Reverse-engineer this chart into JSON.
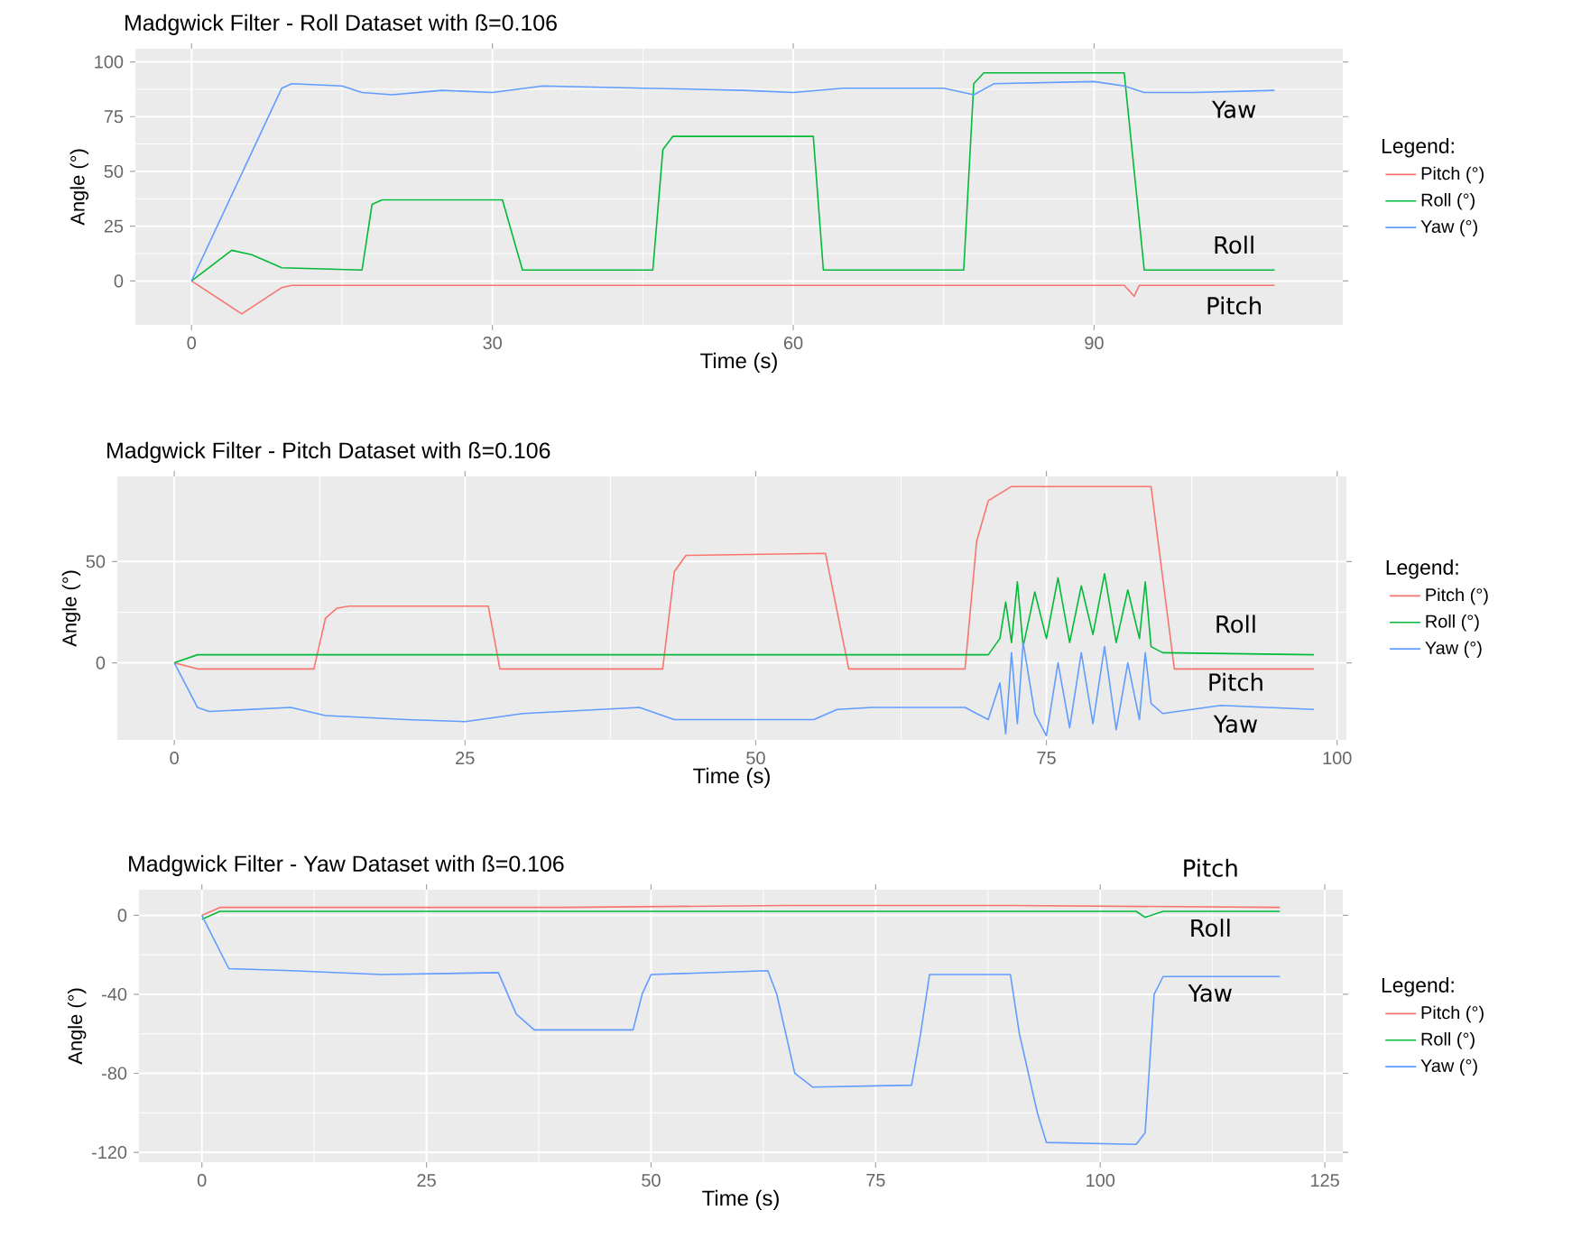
{
  "chart_data": [
    {
      "type": "line",
      "title": "Madgwick Filter - Roll Dataset with ß=0.106",
      "xlabel": "Time (s)",
      "ylabel": "Angle (°)",
      "legend_title": "Legend:",
      "legend": "right",
      "grid": true,
      "xlim": [
        -5.6,
        114.8
      ],
      "ylim": [
        -20,
        106
      ],
      "xticks": [
        0,
        30,
        60,
        90
      ],
      "yticks": [
        0,
        25,
        50,
        75,
        100
      ],
      "series": [
        {
          "name": "Pitch (°)",
          "color": "#f8766d",
          "x": [
            0,
            5,
            9,
            10,
            50,
            93,
            94,
            94.5,
            108
          ],
          "values": [
            0,
            -15,
            -3,
            -2,
            -2,
            -2,
            -7,
            -2,
            -2
          ]
        },
        {
          "name": "Roll (°)",
          "color": "#00ba38",
          "x": [
            0,
            4,
            6,
            9,
            17,
            18,
            19,
            31,
            33,
            46,
            47,
            48,
            62,
            63,
            77,
            78,
            79,
            93,
            95,
            108
          ],
          "values": [
            0,
            14,
            12,
            6,
            5,
            35,
            37,
            37,
            5,
            5,
            60,
            66,
            66,
            5,
            5,
            90,
            95,
            95,
            5,
            5
          ]
        },
        {
          "name": "Yaw (°)",
          "color": "#619cff",
          "x": [
            0,
            9,
            10,
            15,
            17,
            20,
            25,
            30,
            35,
            45,
            55,
            60,
            65,
            75,
            78,
            80,
            90,
            93,
            95,
            100,
            108
          ],
          "values": [
            0,
            88,
            90,
            89,
            86,
            85,
            87,
            86,
            89,
            88,
            87,
            86,
            88,
            88,
            85,
            90,
            91,
            89,
            86,
            86,
            87
          ]
        }
      ],
      "annotations": [
        "Yaw",
        "Roll",
        "Pitch"
      ]
    },
    {
      "type": "line",
      "title": "Madgwick Filter - Pitch Dataset with ß=0.106",
      "xlabel": "Time (s)",
      "ylabel": "Angle (°)",
      "legend_title": "Legend:",
      "legend": "right",
      "grid": true,
      "xlim": [
        -4.9,
        100.8
      ],
      "ylim": [
        -38,
        92
      ],
      "xticks": [
        0,
        25,
        50,
        75,
        100
      ],
      "yticks": [
        0,
        50
      ],
      "series": [
        {
          "name": "Pitch (°)",
          "color": "#f8766d",
          "x": [
            0,
            2,
            12,
            13,
            14,
            15,
            27,
            28,
            42,
            43,
            44,
            56,
            58,
            68,
            69,
            70,
            72,
            84,
            86,
            98
          ],
          "values": [
            0,
            -3,
            -3,
            22,
            27,
            28,
            28,
            -3,
            -3,
            45,
            53,
            54,
            -3,
            -3,
            60,
            80,
            87,
            87,
            -3,
            -3
          ]
        },
        {
          "name": "Roll (°)",
          "color": "#00ba38",
          "x": [
            0,
            2,
            3,
            70,
            71,
            71.5,
            72,
            72.5,
            73,
            74,
            75,
            76,
            77,
            78,
            79,
            80,
            81,
            82,
            83,
            83.5,
            84,
            85,
            98
          ],
          "values": [
            0,
            4,
            4,
            4,
            12,
            30,
            10,
            40,
            8,
            35,
            12,
            42,
            10,
            38,
            14,
            44,
            10,
            36,
            12,
            40,
            8,
            5,
            4
          ]
        },
        {
          "name": "Yaw (°)",
          "color": "#619cff",
          "x": [
            0,
            2,
            3,
            10,
            13,
            20,
            25,
            30,
            40,
            43,
            55,
            57,
            60,
            68,
            70,
            71,
            71.5,
            72,
            72.5,
            73,
            74,
            75,
            76,
            77,
            78,
            79,
            80,
            81,
            82,
            83,
            83.5,
            84,
            85,
            90,
            98
          ],
          "values": [
            0,
            -22,
            -24,
            -22,
            -26,
            -28,
            -29,
            -25,
            -22,
            -28,
            -28,
            -23,
            -22,
            -22,
            -28,
            -10,
            -35,
            5,
            -30,
            10,
            -25,
            -36,
            0,
            -32,
            5,
            -30,
            8,
            -33,
            0,
            -28,
            5,
            -20,
            -25,
            -21,
            -23
          ]
        }
      ],
      "annotations": [
        "Roll",
        "Pitch",
        "Yaw"
      ]
    },
    {
      "type": "line",
      "title": "Madgwick Filter - Yaw Dataset with ß=0.106",
      "xlabel": "Time (s)",
      "ylabel": "Angle (°)",
      "legend_title": "Legend:",
      "legend": "right",
      "grid": true,
      "xlim": [
        -7,
        127
      ],
      "ylim": [
        -125,
        13
      ],
      "xticks": [
        0,
        25,
        50,
        75,
        100,
        125
      ],
      "yticks": [
        -120,
        -80,
        -40,
        0
      ],
      "series": [
        {
          "name": "Pitch (°)",
          "color": "#f8766d",
          "x": [
            0,
            2,
            40,
            65,
            90,
            120
          ],
          "values": [
            0,
            4,
            4,
            5,
            5,
            4
          ]
        },
        {
          "name": "Roll (°)",
          "color": "#00ba38",
          "x": [
            0,
            2,
            60,
            104,
            105,
            107,
            120
          ],
          "values": [
            -2,
            2,
            2,
            2,
            -1,
            2,
            2
          ]
        },
        {
          "name": "Yaw (°)",
          "color": "#619cff",
          "x": [
            0,
            3,
            10,
            20,
            33,
            35,
            37,
            48,
            49,
            50,
            63,
            64,
            66,
            68,
            79,
            80,
            81,
            90,
            91,
            93,
            94,
            104,
            105,
            106,
            107,
            120
          ],
          "values": [
            0,
            -27,
            -28,
            -30,
            -29,
            -50,
            -58,
            -58,
            -40,
            -30,
            -28,
            -40,
            -80,
            -87,
            -86,
            -60,
            -30,
            -30,
            -60,
            -100,
            -115,
            -116,
            -110,
            -40,
            -31,
            -31
          ]
        }
      ],
      "annotations": [
        "Pitch",
        "Roll",
        "Yaw"
      ]
    }
  ]
}
